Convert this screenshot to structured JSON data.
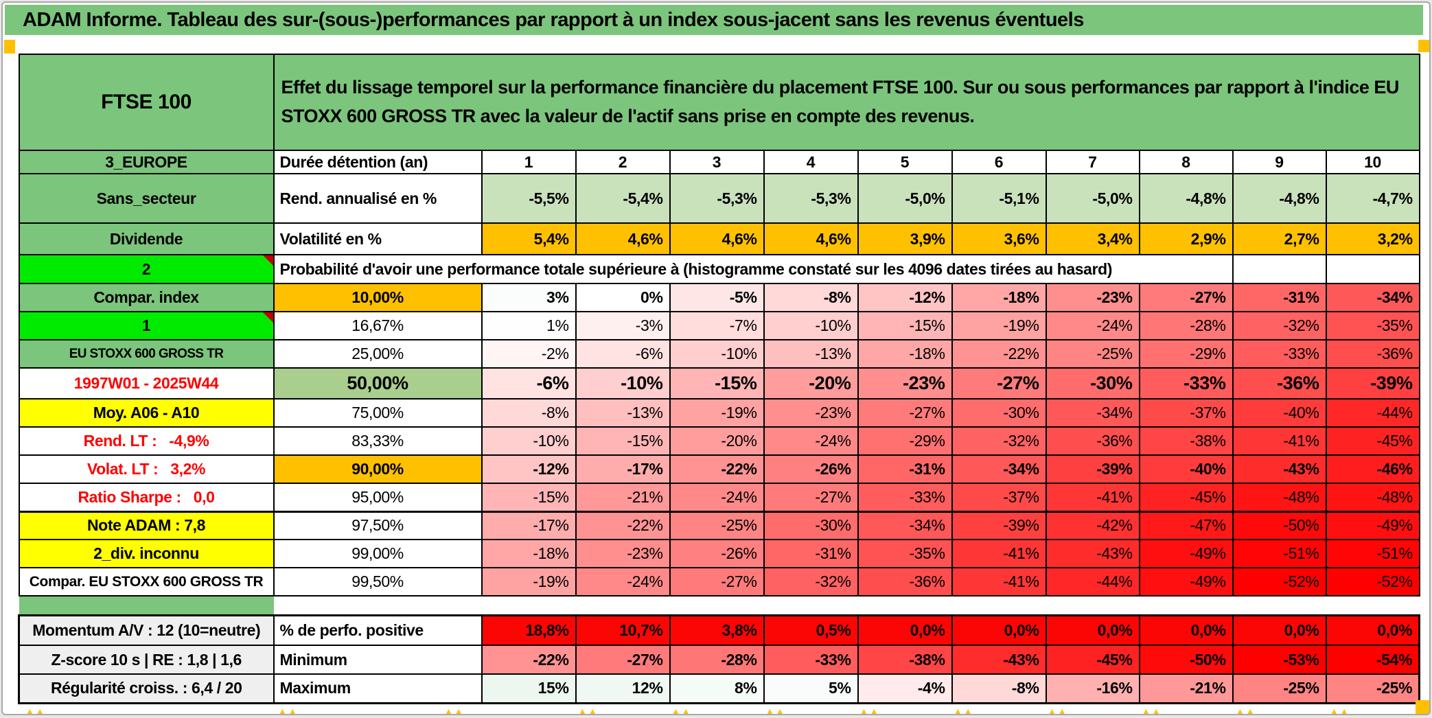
{
  "colors": {
    "green": "#7CC57C",
    "bright-green": "#00EB00",
    "orange": "#FFC000",
    "yellow": "#FFFF00",
    "olive": "#A9CE8E",
    "light-green": "#C9E2BC",
    "gray": "#EFEFEF",
    "red": "#FF0000",
    "red-text": "#FF0000",
    "perfo-red": "#FB0505",
    "corner-red": "#C00000"
  },
  "title_bar": {
    "text": "ADAM Informe. Tableau des sur-(sous-)performances par rapport à un index sous-jacent sans les revenus éventuels"
  },
  "header": {
    "asset": "FTSE 100",
    "description": "Effet du lissage temporel sur la performance financière du placement FTSE 100. Sur ou sous performances par rapport à l'indice EU STOXX 600 GROSS TR avec la valeur de l'actif sans prise en compte des revenus."
  },
  "rows": {
    "duration": {
      "label": "3_EUROPE",
      "header": "Durée détention (an)",
      "values": [
        "1",
        "2",
        "3",
        "4",
        "5",
        "6",
        "7",
        "8",
        "9",
        "10"
      ],
      "bg": "none",
      "weight": "bold",
      "align": "center"
    },
    "rend": {
      "label": "Sans_secteur",
      "header": "Rend. annualisé en %",
      "values": [
        "-5,5%",
        "-5,4%",
        "-5,3%",
        "-5,3%",
        "-5,0%",
        "-5,1%",
        "-5,0%",
        "-4,8%",
        "-4,8%",
        "-4,7%"
      ],
      "bg": "light-green",
      "weight": "bold"
    },
    "volat": {
      "label": "Dividende",
      "header": "Volatilité en %",
      "values": [
        "5,4%",
        "4,6%",
        "4,6%",
        "4,6%",
        "3,9%",
        "3,6%",
        "3,4%",
        "2,9%",
        "2,7%",
        "3,2%"
      ],
      "bg": "orange",
      "weight": "bold"
    },
    "prob_header": {
      "label": "2",
      "text": "Probabilité d'avoir une performance totale supérieure à (histogramme constaté sur les 4096 dates tirées au hasard)"
    },
    "prob": [
      {
        "label": "Compar. index",
        "pct": "10,00%",
        "weight": "bold",
        "bg": "auto",
        "values": [
          "3%",
          "0%",
          "-5%",
          "-8%",
          "-12%",
          "-18%",
          "-23%",
          "-27%",
          "-31%",
          "-34%"
        ]
      },
      {
        "label": "1",
        "pct": "16,67%",
        "weight": "light",
        "bg": "auto",
        "values": [
          "1%",
          "-3%",
          "-7%",
          "-10%",
          "-15%",
          "-19%",
          "-24%",
          "-28%",
          "-32%",
          "-35%"
        ]
      },
      {
        "label": "EU STOXX 600 GROSS TR",
        "pct": "25,00%",
        "weight": "light",
        "bg": "auto",
        "values": [
          "-2%",
          "-6%",
          "-10%",
          "-13%",
          "-18%",
          "-22%",
          "-25%",
          "-29%",
          "-33%",
          "-36%"
        ]
      },
      {
        "label": "1997W01 - 2025W44",
        "pct": "50,00%",
        "weight": "bold",
        "size": "big",
        "bg": "auto",
        "values": [
          "-6%",
          "-10%",
          "-15%",
          "-20%",
          "-23%",
          "-27%",
          "-30%",
          "-33%",
          "-36%",
          "-39%"
        ]
      },
      {
        "label": "Moy. A06 - A10",
        "pct": "75,00%",
        "weight": "light",
        "bg": "auto",
        "values": [
          "-8%",
          "-13%",
          "-19%",
          "-23%",
          "-27%",
          "-30%",
          "-34%",
          "-37%",
          "-40%",
          "-44%"
        ]
      },
      {
        "label": "Rend. LT :   -4,9%",
        "pct": "83,33%",
        "weight": "light",
        "bg": "auto",
        "values": [
          "-10%",
          "-15%",
          "-20%",
          "-24%",
          "-29%",
          "-32%",
          "-36%",
          "-38%",
          "-41%",
          "-45%"
        ]
      },
      {
        "label": "Volat. LT :   3,2%",
        "pct": "90,00%",
        "weight": "bold",
        "bg": "auto",
        "values": [
          "-12%",
          "-17%",
          "-22%",
          "-26%",
          "-31%",
          "-34%",
          "-39%",
          "-40%",
          "-43%",
          "-46%"
        ]
      },
      {
        "label": "Ratio Sharpe :   0,0",
        "pct": "95,00%",
        "weight": "light",
        "bg": "auto",
        "values": [
          "-15%",
          "-21%",
          "-24%",
          "-27%",
          "-33%",
          "-37%",
          "-41%",
          "-45%",
          "-48%",
          "-48%"
        ]
      },
      {
        "label": "Note ADAM : 7,8",
        "pct": "97,50%",
        "weight": "light",
        "bg": "auto",
        "values": [
          "-17%",
          "-22%",
          "-25%",
          "-30%",
          "-34%",
          "-39%",
          "-42%",
          "-47%",
          "-50%",
          "-49%"
        ]
      },
      {
        "label": "2_div. inconnu",
        "pct": "99,00%",
        "weight": "light",
        "bg": "auto",
        "values": [
          "-18%",
          "-23%",
          "-26%",
          "-31%",
          "-35%",
          "-41%",
          "-43%",
          "-49%",
          "-51%",
          "-51%"
        ]
      },
      {
        "label": "Compar. EU STOXX 600 GROSS TR",
        "pct": "99,50%",
        "weight": "light",
        "bg": "auto",
        "values": [
          "-19%",
          "-24%",
          "-27%",
          "-32%",
          "-36%",
          "-41%",
          "-44%",
          "-49%",
          "-52%",
          "-52%"
        ]
      }
    ],
    "footer": [
      {
        "label": "Momentum A/V : 12 (10=neutre)",
        "header": "% de perfo. positive",
        "weight": "bold",
        "bg": "perfo-red",
        "values": [
          "18,8%",
          "10,7%",
          "3,8%",
          "0,5%",
          "0,0%",
          "0,0%",
          "0,0%",
          "0,0%",
          "0,0%",
          "0,0%"
        ]
      },
      {
        "label": "Z-score 10 s | RE : 1,8 | 1,6",
        "header": "Minimum",
        "weight": "bold",
        "bg": "auto",
        "values": [
          "-22%",
          "-27%",
          "-28%",
          "-33%",
          "-38%",
          "-43%",
          "-45%",
          "-50%",
          "-53%",
          "-54%"
        ]
      },
      {
        "label": "Régularité croiss. : 6,4 / 20",
        "header": "Maximum",
        "weight": "bold",
        "bg": "auto",
        "values": [
          "15%",
          "12%",
          "8%",
          "5%",
          "-4%",
          "-8%",
          "-16%",
          "-21%",
          "-25%",
          "-25%"
        ]
      }
    ]
  }
}
